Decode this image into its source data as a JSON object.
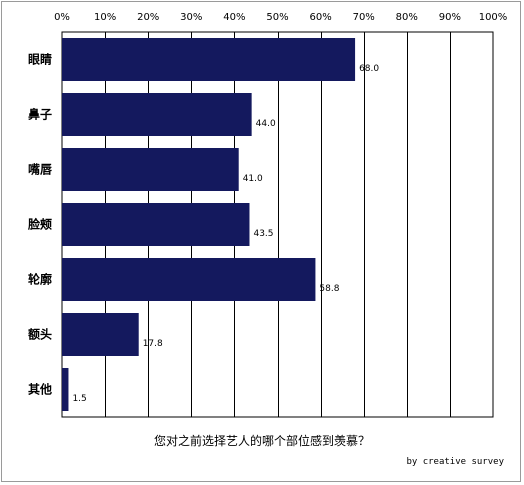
{
  "chart_data": {
    "type": "bar",
    "orientation": "horizontal",
    "categories": [
      "眼睛",
      "鼻子",
      "嘴唇",
      "脸颊",
      "轮廓",
      "额头",
      "其他"
    ],
    "values": [
      68.0,
      44.0,
      41.0,
      43.5,
      58.8,
      17.8,
      1.5
    ],
    "value_labels": [
      "68.0",
      "44.0",
      "41.0",
      "43.5",
      "58.8",
      "17.8",
      "1.5"
    ],
    "xlim": [
      0,
      100
    ],
    "xticks": [
      "0%",
      "10%",
      "20%",
      "30%",
      "40%",
      "50%",
      "60%",
      "70%",
      "80%",
      "90%",
      "100%"
    ],
    "xaxis_position": "top",
    "grid": true,
    "bar_color": "#14195e",
    "xlabel": "您对之前选择艺人的哪个部位感到羡慕？",
    "credit": "by creative survey"
  }
}
